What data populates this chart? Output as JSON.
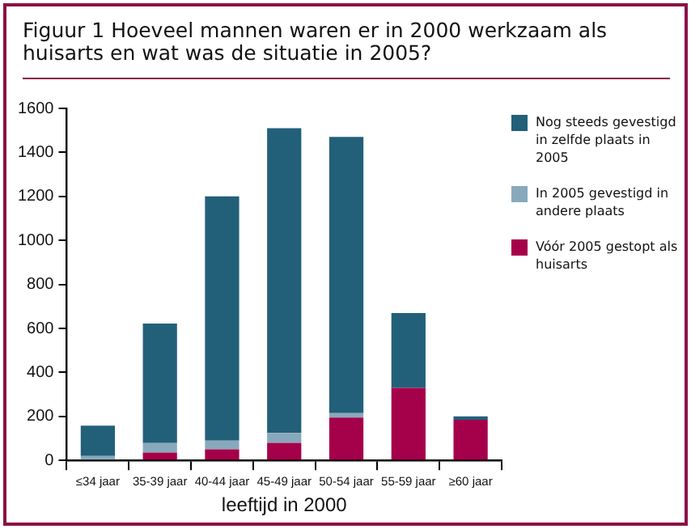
{
  "chart_data": {
    "type": "bar",
    "title": "Figuur 1  Hoeveel mannen waren er in 2000 werkzaam als huisarts en wat was de situatie in 2005?",
    "xlabel": "leeftijd in 2000",
    "categories": [
      "≤34 jaar",
      "35-39 jaar",
      "40-44 jaar",
      "45-49 jaar",
      "50-54 jaar",
      "55-59 jaar",
      "≥60 jaar"
    ],
    "series": [
      {
        "name": "Vóór 2005 gestopt als huisarts",
        "color": "#a5004a",
        "values": [
          0,
          36,
          50,
          80,
          195,
          330,
          185
        ]
      },
      {
        "name": "In 2005 gevestigd in andere plaats",
        "color": "#88a9bc",
        "values": [
          20,
          43,
          40,
          45,
          20,
          0,
          0
        ]
      },
      {
        "name": "Nog steeds gevestigd in zelfde plaats in 2005",
        "color": "#22607a",
        "values": [
          138,
          543,
          1110,
          1385,
          1255,
          340,
          15
        ]
      }
    ],
    "stacked": true,
    "ylim": [
      0,
      1600
    ],
    "yticks": [
      0,
      200,
      400,
      600,
      800,
      1000,
      1200,
      1400,
      1600
    ],
    "grid": false,
    "legend": "right"
  }
}
